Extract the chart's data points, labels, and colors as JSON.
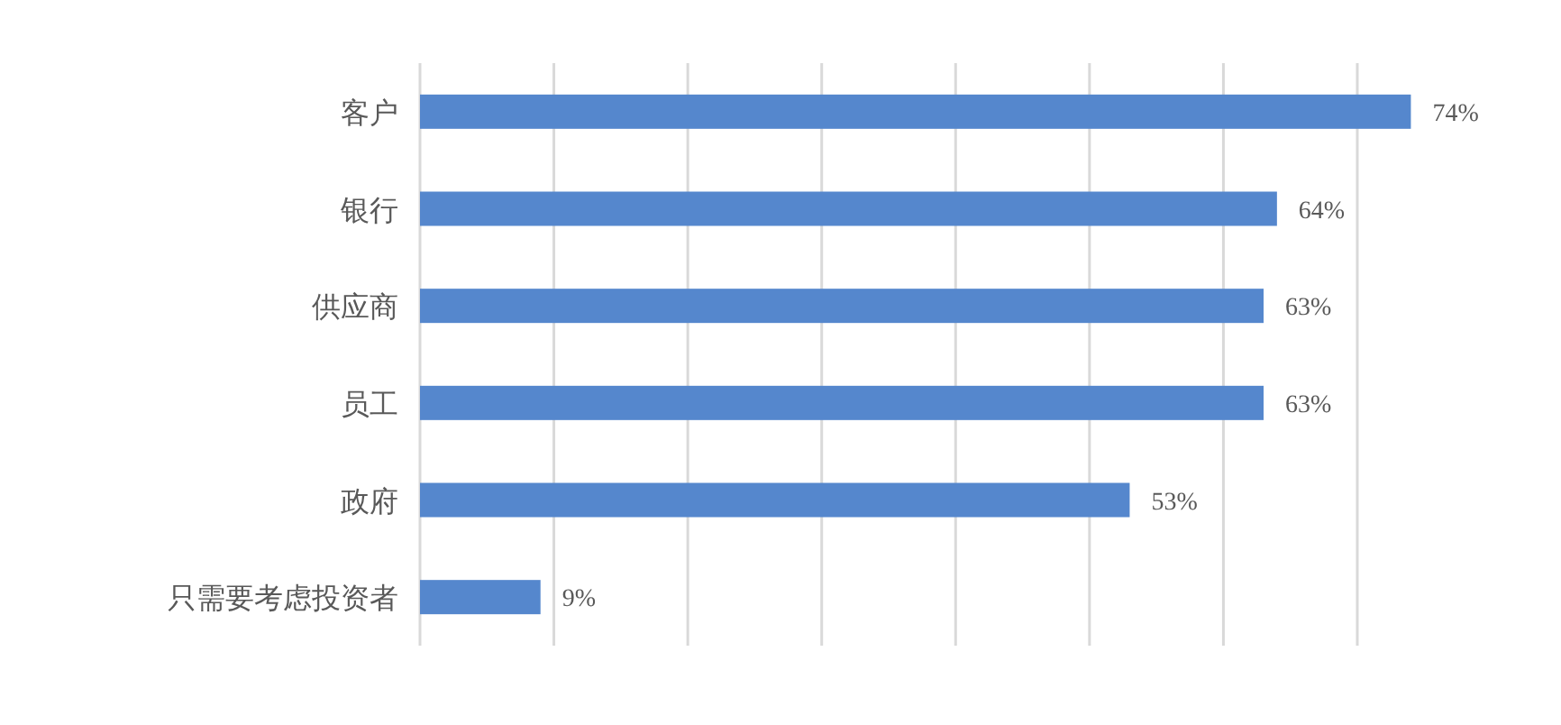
{
  "chart_data": {
    "type": "bar",
    "orientation": "horizontal",
    "categories": [
      "客户",
      "银行",
      "供应商",
      "员工",
      "政府",
      "只需要考虑投资者"
    ],
    "values": [
      74,
      64,
      63,
      63,
      53,
      9
    ],
    "value_labels": [
      "74%",
      "64%",
      "63%",
      "63%",
      "53%",
      "9%"
    ],
    "color": "#5587cd",
    "xticks": [
      {
        "value": 0,
        "label": null
      },
      {
        "value": 10,
        "label": null
      },
      {
        "value": 20,
        "label": null
      },
      {
        "value": 30,
        "label": null
      },
      {
        "value": 40,
        "label": null
      },
      {
        "value": 50,
        "label": null
      },
      {
        "value": 60,
        "label": null
      },
      {
        "value": 70,
        "label": null
      }
    ],
    "grid": "x"
  }
}
